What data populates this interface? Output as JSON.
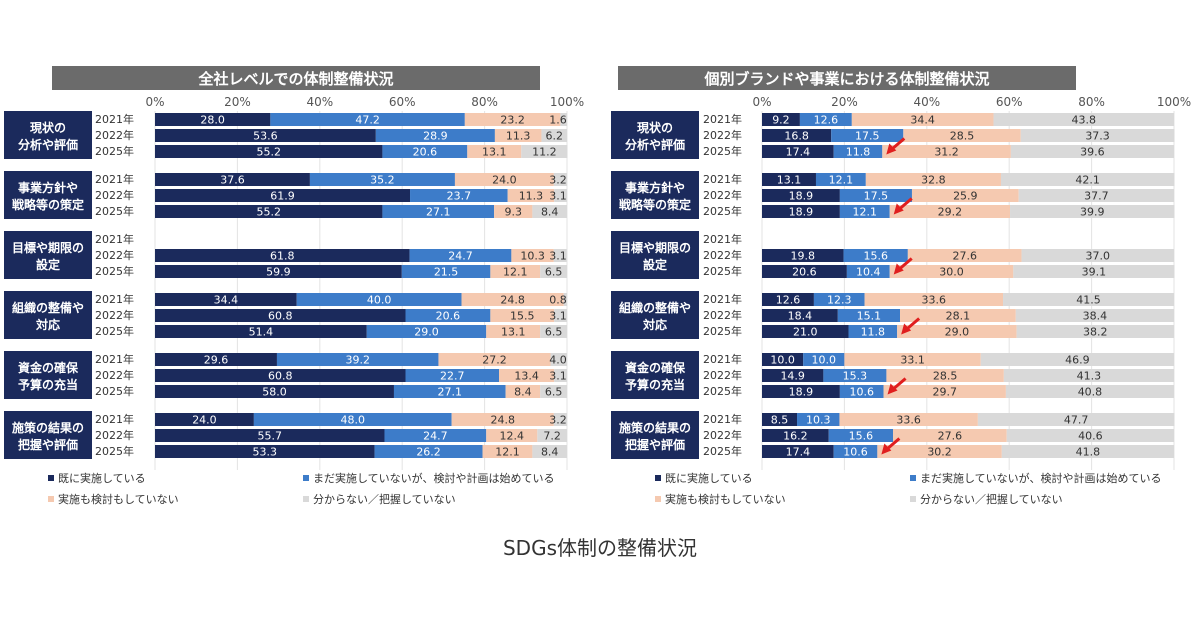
{
  "caption": "SDGs体制の整備状況",
  "colors": {
    "implemented": "#1b2a5c",
    "started": "#3d7cc9",
    "not_considered": "#f5c9b0",
    "unknown": "#d9d9d9",
    "category_box": "#1b2a5c",
    "panel_title_bar": "#6b6b6b",
    "arrow": "#e01f1f"
  },
  "legend": [
    {
      "key": "implemented",
      "label": "既に実施している"
    },
    {
      "key": "started",
      "label": "まだ実施していないが、検討や計画は始めている"
    },
    {
      "key": "not_considered",
      "label": "実施も検討もしていない"
    },
    {
      "key": "unknown",
      "label": "分からない／把握していない"
    }
  ],
  "chart_data": [
    {
      "type": "bar",
      "orientation": "horizontal",
      "stacked": true,
      "title": "全社レベルでの体制整備状況",
      "x_ticks": [
        "0%",
        "20%",
        "40%",
        "60%",
        "80%",
        "100%"
      ],
      "xlim": [
        0,
        100
      ],
      "series_keys": [
        "implemented",
        "started",
        "not_considered",
        "unknown"
      ],
      "groups": [
        {
          "label": [
            "現状の",
            "分析や評価"
          ],
          "rows": [
            {
              "year": "2021年",
              "values": [
                28.0,
                47.2,
                23.2,
                1.6
              ]
            },
            {
              "year": "2022年",
              "values": [
                53.6,
                28.9,
                11.3,
                6.2
              ]
            },
            {
              "year": "2025年",
              "values": [
                55.2,
                20.6,
                13.1,
                11.2
              ]
            }
          ]
        },
        {
          "label": [
            "事業方針や",
            "戦略等の策定"
          ],
          "rows": [
            {
              "year": "2021年",
              "values": [
                37.6,
                35.2,
                24.0,
                3.2
              ]
            },
            {
              "year": "2022年",
              "values": [
                61.9,
                23.7,
                11.3,
                3.1
              ]
            },
            {
              "year": "2025年",
              "values": [
                55.2,
                27.1,
                9.3,
                8.4
              ]
            }
          ]
        },
        {
          "label": [
            "目標や期限の",
            "設定"
          ],
          "rows": [
            {
              "year": "2021年",
              "values": null
            },
            {
              "year": "2022年",
              "values": [
                61.8,
                24.7,
                10.3,
                3.1
              ]
            },
            {
              "year": "2025年",
              "values": [
                59.9,
                21.5,
                12.1,
                6.5
              ]
            }
          ]
        },
        {
          "label": [
            "組織の整備や",
            "対応"
          ],
          "rows": [
            {
              "year": "2021年",
              "values": [
                34.4,
                40.0,
                24.8,
                0.8
              ]
            },
            {
              "year": "2022年",
              "values": [
                60.8,
                20.6,
                15.5,
                3.1
              ]
            },
            {
              "year": "2025年",
              "values": [
                51.4,
                29.0,
                13.1,
                6.5
              ]
            }
          ]
        },
        {
          "label": [
            "資金の確保",
            "予算の充当"
          ],
          "rows": [
            {
              "year": "2021年",
              "values": [
                29.6,
                39.2,
                27.2,
                4.0
              ]
            },
            {
              "year": "2022年",
              "values": [
                60.8,
                22.7,
                13.4,
                3.1
              ]
            },
            {
              "year": "2025年",
              "values": [
                58.0,
                27.1,
                8.4,
                6.5
              ]
            }
          ]
        },
        {
          "label": [
            "施策の結果の",
            "把握や評価"
          ],
          "rows": [
            {
              "year": "2021年",
              "values": [
                24.0,
                48.0,
                24.8,
                3.2
              ]
            },
            {
              "year": "2022年",
              "values": [
                55.7,
                24.7,
                12.4,
                7.2
              ]
            },
            {
              "year": "2025年",
              "values": [
                53.3,
                26.2,
                12.1,
                8.4
              ]
            }
          ]
        }
      ]
    },
    {
      "type": "bar",
      "orientation": "horizontal",
      "stacked": true,
      "title": "個別ブランドや事業における体制整備状況",
      "x_ticks": [
        "0%",
        "20%",
        "40%",
        "60%",
        "80%",
        "100%"
      ],
      "xlim": [
        0,
        100
      ],
      "series_keys": [
        "implemented",
        "started",
        "not_considered",
        "unknown"
      ],
      "groups": [
        {
          "label": [
            "現状の",
            "分析や評価"
          ],
          "rows": [
            {
              "year": "2021年",
              "values": [
                9.2,
                12.6,
                34.4,
                43.8
              ]
            },
            {
              "year": "2022年",
              "values": [
                16.8,
                17.5,
                28.5,
                37.3
              ]
            },
            {
              "year": "2025年",
              "values": [
                17.4,
                11.8,
                31.2,
                39.6
              ],
              "arrow": true
            }
          ]
        },
        {
          "label": [
            "事業方針や",
            "戦略等の策定"
          ],
          "rows": [
            {
              "year": "2021年",
              "values": [
                13.1,
                12.1,
                32.8,
                42.1
              ]
            },
            {
              "year": "2022年",
              "values": [
                18.9,
                17.5,
                25.9,
                37.7
              ]
            },
            {
              "year": "2025年",
              "values": [
                18.9,
                12.1,
                29.2,
                39.9
              ],
              "arrow": true
            }
          ]
        },
        {
          "label": [
            "目標や期限の",
            "設定"
          ],
          "rows": [
            {
              "year": "2021年",
              "values": null
            },
            {
              "year": "2022年",
              "values": [
                19.8,
                15.6,
                27.6,
                37.0
              ]
            },
            {
              "year": "2025年",
              "values": [
                20.6,
                10.4,
                30.0,
                39.1
              ],
              "arrow": true
            }
          ]
        },
        {
          "label": [
            "組織の整備や",
            "対応"
          ],
          "rows": [
            {
              "year": "2021年",
              "values": [
                12.6,
                12.3,
                33.6,
                41.5
              ]
            },
            {
              "year": "2022年",
              "values": [
                18.4,
                15.1,
                28.1,
                38.4
              ]
            },
            {
              "year": "2025年",
              "values": [
                21.0,
                11.8,
                29.0,
                38.2
              ],
              "arrow": true
            }
          ]
        },
        {
          "label": [
            "資金の確保",
            "予算の充当"
          ],
          "rows": [
            {
              "year": "2021年",
              "values": [
                10.0,
                10.0,
                33.1,
                46.9
              ]
            },
            {
              "year": "2022年",
              "values": [
                14.9,
                15.3,
                28.5,
                41.3
              ]
            },
            {
              "year": "2025年",
              "values": [
                18.9,
                10.6,
                29.7,
                40.8
              ],
              "arrow": true
            }
          ]
        },
        {
          "label": [
            "施策の結果の",
            "把握や評価"
          ],
          "rows": [
            {
              "year": "2021年",
              "values": [
                8.5,
                10.3,
                33.6,
                47.7
              ]
            },
            {
              "year": "2022年",
              "values": [
                16.2,
                15.6,
                27.6,
                40.6
              ]
            },
            {
              "year": "2025年",
              "values": [
                17.4,
                10.6,
                30.2,
                41.8
              ],
              "arrow": true
            }
          ]
        }
      ]
    }
  ]
}
